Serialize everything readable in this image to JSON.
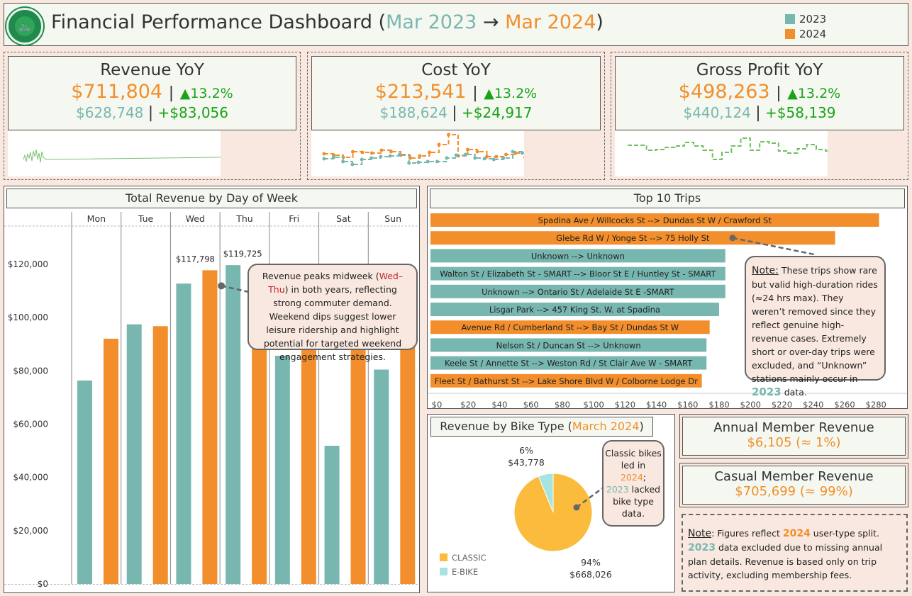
{
  "header": {
    "logo_icon": "bike-share-toronto-logo",
    "title_prefix": "Financial Performance Dashboard (",
    "title_from": "Mar 2023",
    "title_arrow": " → ",
    "title_to": "Mar 2024",
    "title_suffix": ")",
    "legend": [
      {
        "label": "2023",
        "color": "#78b7b0"
      },
      {
        "label": "2024",
        "color": "#f28e2b"
      }
    ]
  },
  "colors": {
    "y2023": "#78b7b0",
    "y2024": "#f28e2b",
    "positive": "#1aa31a",
    "spark": "#6fbf5f",
    "classic": "#fbbc3d",
    "ebike": "#a7e3e0"
  },
  "kpis": [
    {
      "title": "Revenue YoY",
      "current": "$711,804",
      "change_pct": "▲13.2%",
      "previous": "$628,748",
      "change_abs": "+$83,056"
    },
    {
      "title": "Cost YoY",
      "current": "$213,541",
      "change_pct": "▲13.2%",
      "previous": "$188,624",
      "change_abs": "+$24,917"
    },
    {
      "title": "Gross Profit YoY",
      "current": "$498,263",
      "change_pct": "▲13.2%",
      "previous": "$440,124",
      "change_abs": "+$58,139"
    }
  ],
  "separator": "|",
  "chart_data": [
    {
      "type": "bar",
      "title": "Total Revenue by Day of Week",
      "categories": [
        "Mon",
        "Tue",
        "Wed",
        "Thu",
        "Fri",
        "Sat",
        "Sun"
      ],
      "series": [
        {
          "name": "2023",
          "values": [
            76400,
            97500,
            112800,
            119725,
            85700,
            51900,
            80500
          ]
        },
        {
          "name": "2024",
          "values": [
            92100,
            96800,
            117798,
            100100,
            113500,
            97300,
            91100
          ]
        }
      ],
      "data_labels": [
        {
          "category": "Wed",
          "series": "2024",
          "text": "$117,798"
        },
        {
          "category": "Thu",
          "series": "2023",
          "text": "$119,725"
        }
      ],
      "yticks": [
        "$0",
        "$20,000",
        "$40,000",
        "$60,000",
        "$80,000",
        "$100,000",
        "$120,000"
      ],
      "ytick_values": [
        0,
        20000,
        40000,
        60000,
        80000,
        100000,
        120000
      ],
      "ylim": [
        0,
        132000
      ],
      "xlabel": "",
      "ylabel": "",
      "annotation": {
        "before": "Revenue peaks midweek (",
        "highlight": "Wed–Thu",
        "after": ") in both years, reflecting strong commuter demand. Weekend dips suggest lower leisure ridership and highlight potential for targeted weekend engagement strategies."
      }
    },
    {
      "type": "bar",
      "orientation": "horizontal",
      "title": "Top 10 Trips",
      "categories": [
        "Spadina Ave / Willcocks St --> Dundas St W / Crawford St",
        "Glebe Rd W / Yonge St --> 75 Holly St",
        "Unknown --> Unknown",
        "Walton St / Elizabeth St - SMART --> Bloor St E / Huntley St - SMART",
        "Unknown --> Ontario St / Adelaide St E -SMART",
        "Lisgar Park --> 457 King St. W. at Spadina",
        "Avenue Rd / Cumberland St --> Bay St / Dundas St W",
        "Nelson St / Duncan St --> Unknown",
        "Keele St / Annette St --> Weston Rd / St Clair Ave W - SMART",
        "Fleet St / Bathurst St --> Lake Shore Blvd W / Colborne Lodge Dr"
      ],
      "values": [
        286,
        258,
        188,
        188,
        188,
        184,
        178,
        176,
        176,
        173
      ],
      "years": [
        "2024",
        "2024",
        "2023",
        "2023",
        "2023",
        "2023",
        "2024",
        "2023",
        "2023",
        "2024"
      ],
      "xticks": [
        "$0",
        "$20",
        "$40",
        "$60",
        "$80",
        "$100",
        "$120",
        "$140",
        "$160",
        "$180",
        "$200",
        "$220",
        "$240",
        "$260",
        "$280"
      ],
      "xtick_values": [
        0,
        20,
        40,
        60,
        80,
        100,
        120,
        140,
        160,
        180,
        200,
        220,
        240,
        260,
        280
      ],
      "xlim": [
        0,
        293
      ],
      "annotation": {
        "note_label": "Note:",
        "text": " These trips show rare but valid high-duration rides (≈24 hrs max). They weren’t removed since they reflect genuine high-revenue cases. Extremely short or over-day trips were excluded, and “Unknown” stations mainly occur in ",
        "highlight": "2023",
        "after": " data."
      }
    },
    {
      "type": "pie",
      "title_prefix": "Revenue by Bike Type (",
      "title_highlight": "March 2024",
      "title_suffix": ")",
      "slices": [
        {
          "label": "CLASSIC",
          "value": 668026,
          "pct_text": "94%",
          "value_text": "$668,026"
        },
        {
          "label": "E-BIKE",
          "value": 43778,
          "pct_text": "6%",
          "value_text": "$43,778"
        }
      ],
      "legend": [
        "CLASSIC",
        "E-BIKE"
      ],
      "annotation": {
        "line1": "Classic bikes led in",
        "y2024": "2024",
        "semi": ";",
        "y2023": "2023",
        "line3": "lacked bike type data."
      }
    }
  ],
  "members": {
    "annual": {
      "title": "Annual Member Revenue",
      "value": "$6,105",
      "share": "(≈ 1%)"
    },
    "casual": {
      "title": "Casual Member Revenue",
      "value": "$705,699",
      "share": "(≈ 99%)"
    },
    "note": {
      "label": "Note",
      "p1": ": Figures reflect ",
      "y2024": "2024",
      "p2": " user-type split.",
      "y2023": "2023",
      "p3": " data excluded due to missing annual plan details. Revenue is based only on trip activity, excluding membership fees."
    }
  }
}
